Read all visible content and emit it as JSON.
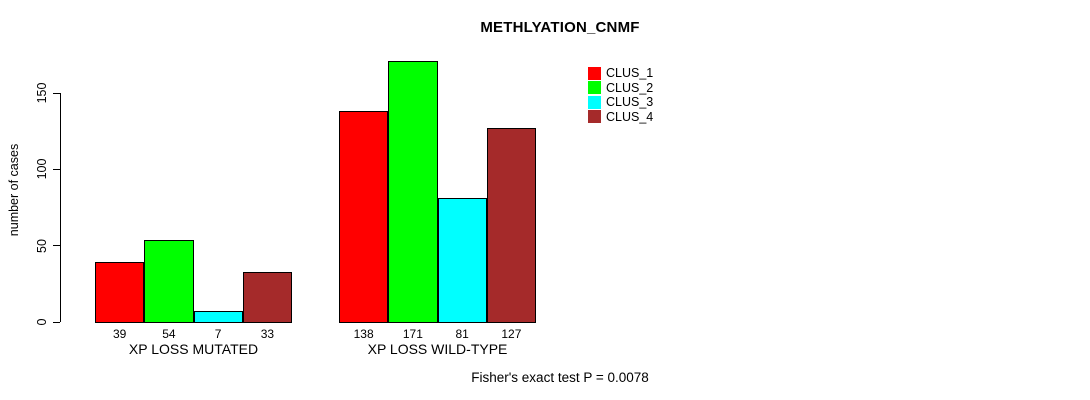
{
  "title": "METHLYATION_CNMF",
  "y_axis": {
    "label": "number of cases",
    "ticks": [
      0,
      50,
      100,
      150
    ]
  },
  "footer": "Fisher's exact test P = 0.0078",
  "legend": [
    {
      "label": "CLUS_1",
      "color": "#ff0000"
    },
    {
      "label": "CLUS_2",
      "color": "#00ff00"
    },
    {
      "label": "CLUS_3",
      "color": "#00ffff"
    },
    {
      "label": "CLUS_4",
      "color": "#a52a2a"
    }
  ],
  "chart_data": {
    "type": "bar",
    "title": "METHLYATION_CNMF",
    "xlabel": "",
    "ylabel": "number of cases",
    "categories": [
      "XP LOSS MUTATED",
      "XP LOSS WILD-TYPE"
    ],
    "series": [
      {
        "name": "CLUS_1",
        "color": "#ff0000",
        "values": [
          39,
          138
        ]
      },
      {
        "name": "CLUS_2",
        "color": "#00ff00",
        "values": [
          54,
          171
        ]
      },
      {
        "name": "CLUS_3",
        "color": "#00ffff",
        "values": [
          7,
          81
        ]
      },
      {
        "name": "CLUS_4",
        "color": "#a52a2a",
        "values": [
          33,
          127
        ]
      }
    ],
    "yticks": [
      0,
      50,
      100,
      150
    ],
    "ylim": [
      0,
      150
    ],
    "bar_value_labels": true,
    "grid": false,
    "legend_position": "top-right",
    "annotation": "Fisher's exact test P = 0.0078"
  }
}
